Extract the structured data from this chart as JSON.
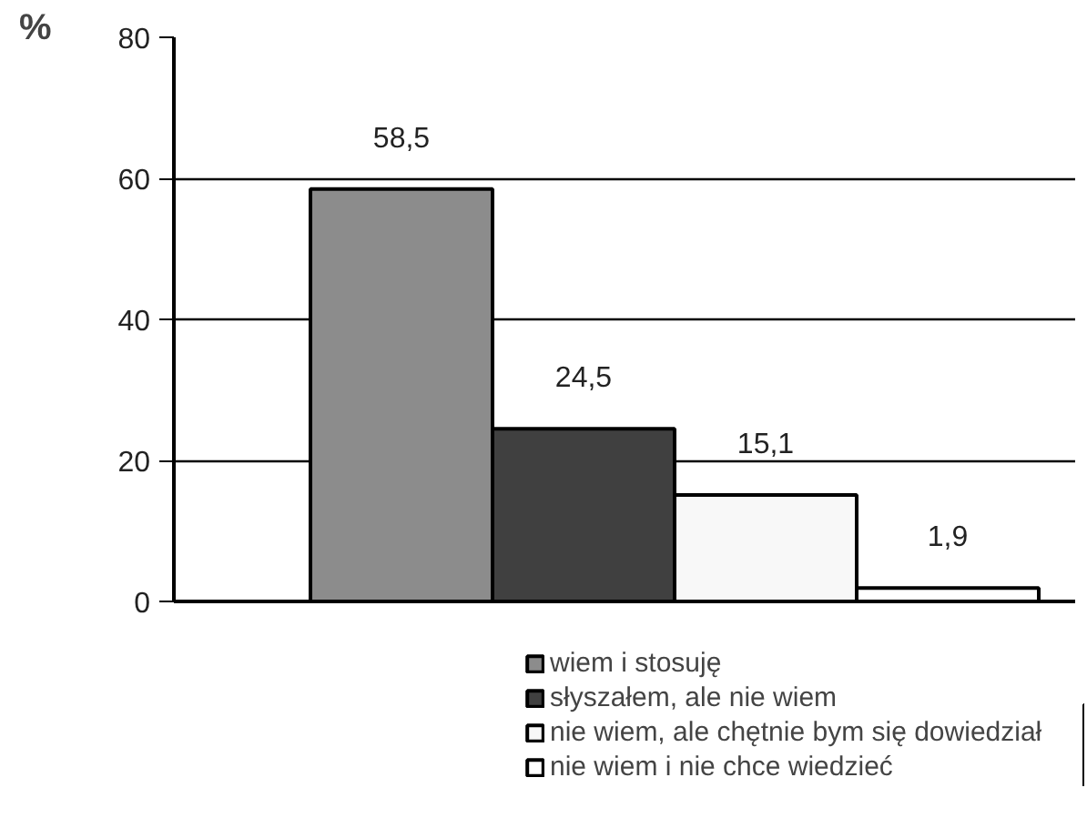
{
  "chart_data": {
    "type": "bar",
    "ylabel": "%",
    "categories": [
      null
    ],
    "series": [
      {
        "name": "wiem i stosuję",
        "color": "#8c8c8c",
        "values": [
          58.5
        ],
        "value_labels": [
          "58,5"
        ]
      },
      {
        "name": "słyszałem, ale nie wiem",
        "color": "#404040",
        "values": [
          24.5
        ],
        "value_labels": [
          "24,5"
        ]
      },
      {
        "name": "nie wiem, ale chętnie bym się dowiedział",
        "color": "#f8f8f8",
        "values": [
          15.1
        ],
        "value_labels": [
          "15,1"
        ]
      },
      {
        "name": "nie wiem i nie chce wiedzieć",
        "color": "#ffffff",
        "values": [
          1.9
        ],
        "value_labels": [
          "1,9"
        ]
      }
    ],
    "ylim": [
      0,
      80
    ],
    "yticks": [
      0,
      20,
      40,
      60,
      80
    ],
    "grid": "y",
    "legend": "bottom"
  }
}
